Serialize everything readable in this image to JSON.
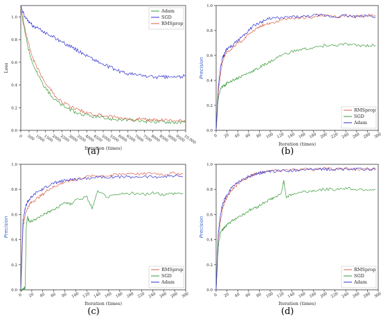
{
  "chart_data": [
    {
      "type": "line",
      "caption": "(a)",
      "xlabel": "Iteration (times)",
      "ylabel": "Loss",
      "xlim": [
        0,
        10000
      ],
      "ylim": [
        0,
        1.1
      ],
      "xticks": [
        0,
        500,
        1000,
        1500,
        2000,
        2500,
        3000,
        3500,
        4000,
        4500,
        5000,
        5500,
        6000,
        6500,
        7000,
        7500,
        8000,
        8500,
        9000,
        9500,
        10000
      ],
      "xtick_labels": [
        "0",
        "500",
        "1000",
        "1500",
        "2000",
        "2500",
        "3000",
        "3500",
        "4000",
        "4500",
        "5000",
        "5500",
        "6000",
        "6500",
        "7000",
        "7500",
        "8000",
        "8500",
        "9000",
        "9500",
        "10,000"
      ],
      "yticks": [
        0,
        0.2,
        0.4,
        0.6,
        0.8,
        1.0
      ],
      "ytick_labels": [
        "0.0",
        "0.2",
        "0.4",
        "0.6",
        "0.8",
        "1.0"
      ],
      "legend": "top-right",
      "legend_entries": [
        "Adam",
        "SGD",
        "RMSprop"
      ],
      "series": [
        {
          "name": "Adam",
          "color": "#3a9a3a",
          "x": [
            0,
            250,
            500,
            750,
            1000,
            1500,
            2000,
            2500,
            3000,
            3500,
            4000,
            4500,
            5000,
            5500,
            6000,
            6500,
            7000,
            7500,
            8000,
            8500,
            9000,
            9500,
            10000
          ],
          "values": [
            1.08,
            0.86,
            0.7,
            0.58,
            0.5,
            0.37,
            0.28,
            0.22,
            0.18,
            0.15,
            0.13,
            0.12,
            0.11,
            0.1,
            0.095,
            0.09,
            0.085,
            0.08,
            0.08,
            0.075,
            0.075,
            0.07,
            0.07
          ]
        },
        {
          "name": "SGD",
          "color": "#2e2ed0",
          "x": [
            0,
            250,
            500,
            750,
            1000,
            1500,
            2000,
            2500,
            3000,
            3500,
            4000,
            4500,
            5000,
            5500,
            6000,
            6500,
            7000,
            7500,
            8000,
            8500,
            9000,
            9500,
            10000
          ],
          "values": [
            1.1,
            1.0,
            0.95,
            0.92,
            0.9,
            0.86,
            0.82,
            0.78,
            0.74,
            0.7,
            0.66,
            0.62,
            0.58,
            0.55,
            0.52,
            0.5,
            0.49,
            0.48,
            0.47,
            0.47,
            0.47,
            0.47,
            0.48
          ]
        },
        {
          "name": "RMSprop",
          "color": "#d8604a",
          "x": [
            0,
            250,
            500,
            750,
            1000,
            1500,
            2000,
            2500,
            3000,
            3500,
            4000,
            4500,
            5000,
            5500,
            6000,
            6500,
            7000,
            7500,
            8000,
            8500,
            9000,
            9500,
            10000
          ],
          "values": [
            1.08,
            0.9,
            0.75,
            0.63,
            0.55,
            0.42,
            0.32,
            0.25,
            0.21,
            0.18,
            0.16,
            0.14,
            0.13,
            0.12,
            0.11,
            0.1,
            0.1,
            0.095,
            0.09,
            0.09,
            0.085,
            0.085,
            0.085
          ]
        }
      ]
    },
    {
      "type": "line",
      "caption": "(b)",
      "xlabel": "Iteration (times)",
      "ylabel": "Precision",
      "xlim": [
        0,
        300
      ],
      "ylim": [
        0,
        1.0
      ],
      "xticks": [
        0,
        20,
        40,
        60,
        80,
        100,
        120,
        140,
        160,
        180,
        200,
        220,
        240,
        260,
        280,
        300
      ],
      "xtick_labels": [
        "0",
        "20",
        "40",
        "60",
        "80",
        "100",
        "120",
        "140",
        "160",
        "180",
        "200",
        "220",
        "240",
        "260",
        "280",
        "300"
      ],
      "yticks": [
        0,
        0.2,
        0.4,
        0.6,
        0.8,
        1.0
      ],
      "ytick_labels": [
        "0.0",
        "0.2",
        "0.4",
        "0.6",
        "0.8",
        "1.0"
      ],
      "legend": "lower-right",
      "legend_entries": [
        "RMSprop",
        "SGD",
        "Adam"
      ],
      "series": [
        {
          "name": "RMSprop",
          "color": "#d8604a",
          "x": [
            0,
            4,
            8,
            12,
            16,
            20,
            30,
            40,
            50,
            60,
            70,
            80,
            90,
            100,
            120,
            140,
            160,
            180,
            200,
            220,
            240,
            260,
            280,
            295
          ],
          "values": [
            0.0,
            0.3,
            0.45,
            0.55,
            0.6,
            0.63,
            0.66,
            0.7,
            0.72,
            0.78,
            0.8,
            0.83,
            0.85,
            0.86,
            0.88,
            0.9,
            0.9,
            0.91,
            0.92,
            0.91,
            0.92,
            0.91,
            0.92,
            0.92
          ]
        },
        {
          "name": "SGD",
          "color": "#3a9a3a",
          "x": [
            0,
            4,
            8,
            12,
            16,
            20,
            30,
            40,
            50,
            60,
            70,
            80,
            90,
            100,
            120,
            140,
            160,
            180,
            200,
            220,
            240,
            260,
            280,
            295
          ],
          "values": [
            0.0,
            0.26,
            0.33,
            0.35,
            0.36,
            0.38,
            0.4,
            0.42,
            0.44,
            0.46,
            0.48,
            0.5,
            0.53,
            0.55,
            0.6,
            0.63,
            0.65,
            0.66,
            0.68,
            0.68,
            0.69,
            0.68,
            0.68,
            0.68
          ]
        },
        {
          "name": "Adam",
          "color": "#2e2ed0",
          "x": [
            0,
            4,
            8,
            12,
            16,
            20,
            30,
            40,
            50,
            60,
            70,
            80,
            90,
            100,
            120,
            140,
            160,
            180,
            200,
            220,
            240,
            260,
            280,
            295
          ],
          "values": [
            0.0,
            0.35,
            0.5,
            0.58,
            0.62,
            0.65,
            0.68,
            0.72,
            0.76,
            0.8,
            0.84,
            0.86,
            0.88,
            0.9,
            0.9,
            0.91,
            0.91,
            0.92,
            0.92,
            0.91,
            0.92,
            0.91,
            0.92,
            0.91
          ]
        }
      ]
    },
    {
      "type": "line",
      "caption": "(c)",
      "xlabel": "Iteration (times)",
      "ylabel": "Precision",
      "xlim": [
        0,
        300
      ],
      "ylim": [
        0,
        1.0
      ],
      "xticks": [
        0,
        20,
        40,
        60,
        80,
        100,
        120,
        140,
        160,
        180,
        200,
        220,
        240,
        260,
        280,
        300
      ],
      "xtick_labels": [
        "0",
        "20",
        "40",
        "60",
        "80",
        "100",
        "120",
        "140",
        "160",
        "180",
        "200",
        "220",
        "240",
        "260",
        "280",
        "300"
      ],
      "yticks": [
        0,
        0.2,
        0.4,
        0.6,
        0.8,
        1.0
      ],
      "ytick_labels": [
        "0.0",
        "0.2",
        "0.4",
        "0.6",
        "0.8",
        "1.0"
      ],
      "legend": "lower-right",
      "legend_entries": [
        "RMSprop",
        "SGD",
        "Adam"
      ],
      "series": [
        {
          "name": "RMSprop",
          "color": "#d8604a",
          "x": [
            0,
            4,
            8,
            12,
            16,
            20,
            30,
            40,
            50,
            60,
            70,
            80,
            90,
            100,
            120,
            140,
            160,
            180,
            200,
            220,
            240,
            260,
            280,
            295
          ],
          "values": [
            0.0,
            0.5,
            0.6,
            0.65,
            0.68,
            0.7,
            0.73,
            0.76,
            0.8,
            0.82,
            0.84,
            0.86,
            0.87,
            0.88,
            0.9,
            0.91,
            0.91,
            0.92,
            0.93,
            0.92,
            0.93,
            0.92,
            0.93,
            0.92
          ]
        },
        {
          "name": "SGD",
          "color": "#3a9a3a",
          "x": [
            0,
            4,
            8,
            10,
            12,
            16,
            20,
            30,
            40,
            50,
            60,
            70,
            80,
            90,
            100,
            120,
            130,
            140,
            160,
            180,
            200,
            220,
            240,
            260,
            280,
            295
          ],
          "values": [
            0.0,
            0.0,
            0.02,
            0.5,
            0.58,
            0.54,
            0.55,
            0.57,
            0.6,
            0.62,
            0.64,
            0.66,
            0.7,
            0.68,
            0.72,
            0.74,
            0.65,
            0.78,
            0.74,
            0.76,
            0.77,
            0.76,
            0.77,
            0.76,
            0.77,
            0.77
          ]
        },
        {
          "name": "Adam",
          "color": "#2e2ed0",
          "x": [
            0,
            4,
            8,
            12,
            16,
            20,
            30,
            40,
            50,
            60,
            70,
            80,
            90,
            100,
            120,
            140,
            160,
            180,
            200,
            220,
            240,
            260,
            280,
            295
          ],
          "values": [
            0.0,
            0.55,
            0.65,
            0.7,
            0.72,
            0.74,
            0.78,
            0.8,
            0.83,
            0.85,
            0.86,
            0.87,
            0.88,
            0.88,
            0.89,
            0.9,
            0.9,
            0.9,
            0.9,
            0.9,
            0.9,
            0.9,
            0.91,
            0.9
          ]
        }
      ]
    },
    {
      "type": "line",
      "caption": "(d)",
      "xlabel": "Iteration (times)",
      "ylabel": "Precision",
      "xlim": [
        0,
        300
      ],
      "ylim": [
        0,
        1.0
      ],
      "xticks": [
        0,
        20,
        40,
        60,
        80,
        100,
        120,
        140,
        160,
        180,
        200,
        220,
        240,
        260,
        280,
        300
      ],
      "xtick_labels": [
        "0",
        "20",
        "40",
        "60",
        "80",
        "100",
        "120",
        "140",
        "160",
        "180",
        "200",
        "220",
        "240",
        "260",
        "280",
        "300"
      ],
      "yticks": [
        0,
        0.2,
        0.4,
        0.6,
        0.8,
        1.0
      ],
      "ytick_labels": [
        "0.0",
        "0.2",
        "0.4",
        "0.6",
        "0.8",
        "1.0"
      ],
      "legend": "lower-right",
      "legend_entries": [
        "RMSprop",
        "SGD",
        "Adam"
      ],
      "series": [
        {
          "name": "RMSprop",
          "color": "#d8604a",
          "x": [
            0,
            4,
            8,
            12,
            16,
            20,
            30,
            40,
            50,
            60,
            70,
            80,
            90,
            100,
            120,
            140,
            160,
            180,
            200,
            220,
            240,
            260,
            280,
            295
          ],
          "values": [
            0.0,
            0.4,
            0.55,
            0.65,
            0.7,
            0.74,
            0.8,
            0.84,
            0.87,
            0.9,
            0.92,
            0.93,
            0.94,
            0.95,
            0.95,
            0.96,
            0.96,
            0.96,
            0.97,
            0.96,
            0.97,
            0.96,
            0.97,
            0.96
          ]
        },
        {
          "name": "SGD",
          "color": "#3a9a3a",
          "x": [
            0,
            4,
            8,
            12,
            16,
            20,
            30,
            40,
            50,
            60,
            70,
            80,
            90,
            100,
            110,
            120,
            125,
            130,
            140,
            160,
            180,
            200,
            220,
            240,
            260,
            280,
            295
          ],
          "values": [
            0.0,
            0.35,
            0.45,
            0.48,
            0.5,
            0.52,
            0.55,
            0.58,
            0.6,
            0.63,
            0.65,
            0.67,
            0.7,
            0.72,
            0.74,
            0.76,
            0.87,
            0.74,
            0.76,
            0.78,
            0.79,
            0.8,
            0.8,
            0.81,
            0.8,
            0.8,
            0.8
          ]
        },
        {
          "name": "Adam",
          "color": "#2e2ed0",
          "x": [
            0,
            4,
            8,
            12,
            16,
            20,
            30,
            40,
            50,
            60,
            70,
            80,
            90,
            100,
            120,
            140,
            160,
            180,
            200,
            220,
            240,
            260,
            280,
            295
          ],
          "values": [
            0.0,
            0.45,
            0.6,
            0.68,
            0.72,
            0.76,
            0.82,
            0.86,
            0.88,
            0.9,
            0.92,
            0.93,
            0.94,
            0.94,
            0.95,
            0.95,
            0.96,
            0.96,
            0.96,
            0.96,
            0.96,
            0.96,
            0.96,
            0.96
          ]
        }
      ]
    }
  ]
}
